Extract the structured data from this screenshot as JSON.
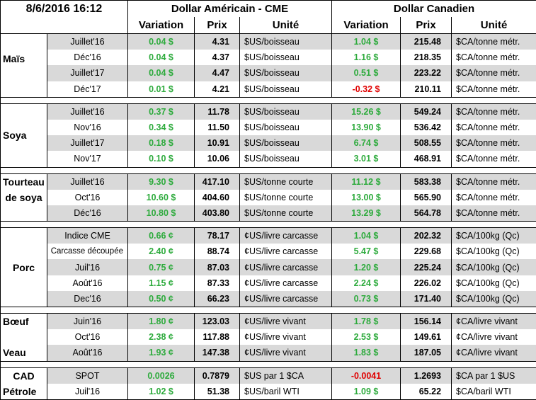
{
  "header": {
    "timestamp": "8/6/2016 16:12",
    "usd_title": "Dollar Américain - CME",
    "cad_title": "Dollar Canadien",
    "col_variation": "Variation",
    "col_prix": "Prix",
    "col_unite": "Unité"
  },
  "colors": {
    "positive": "#2eab3d",
    "negative": "#e00000",
    "row_gray": "#d9d9d9"
  },
  "groups": [
    {
      "name": "Maïs",
      "rows": [
        {
          "month": "Juillet'16",
          "usd_var": "0.04 $",
          "usd_price": "4.31",
          "usd_unit": "$US/boisseau",
          "cad_var": "1.04 $",
          "cad_price": "215.48",
          "cad_unit": "$CA/tonne métr.",
          "usd_sign": "pos",
          "cad_sign": "pos"
        },
        {
          "month": "Déc'16",
          "usd_var": "0.04 $",
          "usd_price": "4.37",
          "usd_unit": "$US/boisseau",
          "cad_var": "1.16 $",
          "cad_price": "218.35",
          "cad_unit": "$CA/tonne métr.",
          "usd_sign": "pos",
          "cad_sign": "pos"
        },
        {
          "month": "Juillet'17",
          "usd_var": "0.04 $",
          "usd_price": "4.47",
          "usd_unit": "$US/boisseau",
          "cad_var": "0.51 $",
          "cad_price": "223.22",
          "cad_unit": "$CA/tonne métr.",
          "usd_sign": "pos",
          "cad_sign": "pos"
        },
        {
          "month": "Déc'17",
          "usd_var": "0.01 $",
          "usd_price": "4.21",
          "usd_unit": "$US/boisseau",
          "cad_var": "-0.32 $",
          "cad_price": "210.11",
          "cad_unit": "$CA/tonne métr.",
          "usd_sign": "pos",
          "cad_sign": "neg"
        }
      ]
    },
    {
      "name": "Soya",
      "rows": [
        {
          "month": "Juillet'16",
          "usd_var": "0.37 $",
          "usd_price": "11.78",
          "usd_unit": "$US/boisseau",
          "cad_var": "15.26 $",
          "cad_price": "549.24",
          "cad_unit": "$CA/tonne métr.",
          "usd_sign": "pos",
          "cad_sign": "pos"
        },
        {
          "month": "Nov'16",
          "usd_var": "0.34 $",
          "usd_price": "11.50",
          "usd_unit": "$US/boisseau",
          "cad_var": "13.90 $",
          "cad_price": "536.42",
          "cad_unit": "$CA/tonne métr.",
          "usd_sign": "pos",
          "cad_sign": "pos"
        },
        {
          "month": "Juillet'17",
          "usd_var": "0.18 $",
          "usd_price": "10.91",
          "usd_unit": "$US/boisseau",
          "cad_var": "6.74 $",
          "cad_price": "508.55",
          "cad_unit": "$CA/tonne métr.",
          "usd_sign": "pos",
          "cad_sign": "pos"
        },
        {
          "month": "Nov'17",
          "usd_var": "0.10 $",
          "usd_price": "10.06",
          "usd_unit": "$US/boisseau",
          "cad_var": "3.01 $",
          "cad_price": "468.91",
          "cad_unit": "$CA/tonne métr.",
          "usd_sign": "pos",
          "cad_sign": "pos"
        }
      ]
    },
    {
      "name_line1": "Tourteau",
      "name_line2": "de soya",
      "rows": [
        {
          "month": "Juillet'16",
          "usd_var": "9.30 $",
          "usd_price": "417.10",
          "usd_unit": "$US/tonne courte",
          "cad_var": "11.12 $",
          "cad_price": "583.38",
          "cad_unit": "$CA/tonne métr.",
          "usd_sign": "pos",
          "cad_sign": "pos"
        },
        {
          "month": "Oct'16",
          "usd_var": "10.60 $",
          "usd_price": "404.60",
          "usd_unit": "$US/tonne courte",
          "cad_var": "13.00 $",
          "cad_price": "565.90",
          "cad_unit": "$CA/tonne métr.",
          "usd_sign": "pos",
          "cad_sign": "pos"
        },
        {
          "month": "Déc'16",
          "usd_var": "10.80 $",
          "usd_price": "403.80",
          "usd_unit": "$US/tonne courte",
          "cad_var": "13.29 $",
          "cad_price": "564.78",
          "cad_unit": "$CA/tonne métr.",
          "usd_sign": "pos",
          "cad_sign": "pos"
        }
      ]
    },
    {
      "name": "Porc",
      "rows": [
        {
          "month": "Indice CME",
          "usd_var": "0.66 ¢",
          "usd_price": "78.17",
          "usd_unit": "¢US/livre carcasse",
          "cad_var": "1.04 $",
          "cad_price": "202.32",
          "cad_unit": "$CA/100kg (Qc)",
          "usd_sign": "pos",
          "cad_sign": "pos"
        },
        {
          "month": "Carcasse découpée",
          "usd_var": "2.40 ¢",
          "usd_price": "88.74",
          "usd_unit": "¢US/livre carcasse",
          "cad_var": "5.47 $",
          "cad_price": "229.68",
          "cad_unit": "$CA/100kg (Qc)",
          "usd_sign": "pos",
          "cad_sign": "pos"
        },
        {
          "month": "Juil'16",
          "usd_var": "0.75 ¢",
          "usd_price": "87.03",
          "usd_unit": "¢US/livre carcasse",
          "cad_var": "1.20 $",
          "cad_price": "225.24",
          "cad_unit": "$CA/100kg (Qc)",
          "usd_sign": "pos",
          "cad_sign": "pos"
        },
        {
          "month": "Août'16",
          "usd_var": "1.15 ¢",
          "usd_price": "87.33",
          "usd_unit": "¢US/livre carcasse",
          "cad_var": "2.24 $",
          "cad_price": "226.02",
          "cad_unit": "$CA/100kg (Qc)",
          "usd_sign": "pos",
          "cad_sign": "pos"
        },
        {
          "month": "Dec'16",
          "usd_var": "0.50 ¢",
          "usd_price": "66.23",
          "usd_unit": "¢US/livre carcasse",
          "cad_var": "0.73 $",
          "cad_price": "171.40",
          "cad_unit": "$CA/100kg (Qc)",
          "usd_sign": "pos",
          "cad_sign": "pos"
        }
      ]
    },
    {
      "name_boeuf": "Bœuf",
      "name_veau": "Veau",
      "rows": [
        {
          "month": "Juin'16",
          "usd_var": "1.80 ¢",
          "usd_price": "123.03",
          "usd_unit": "¢US/livre vivant",
          "cad_var": "1.78 $",
          "cad_price": "156.14",
          "cad_unit": "¢CA/livre vivant",
          "usd_sign": "pos",
          "cad_sign": "pos"
        },
        {
          "month": "Oct'16",
          "usd_var": "2.38 ¢",
          "usd_price": "117.88",
          "usd_unit": "¢US/livre vivant",
          "cad_var": "2.53 $",
          "cad_price": "149.61",
          "cad_unit": "¢CA/livre vivant",
          "usd_sign": "pos",
          "cad_sign": "pos"
        },
        {
          "month": "Août'16",
          "usd_var": "1.93 ¢",
          "usd_price": "147.38",
          "usd_unit": "¢US/livre vivant",
          "cad_var": "1.83 $",
          "cad_price": "187.05",
          "cad_unit": "¢CA/livre vivant",
          "usd_sign": "pos",
          "cad_sign": "pos"
        }
      ]
    },
    {
      "rows": [
        {
          "label": "CAD",
          "month": "SPOT",
          "usd_var": "0.0026",
          "usd_price": "0.7879",
          "usd_unit": "$US par 1 $CA",
          "cad_var": "-0.0041",
          "cad_price": "1.2693",
          "cad_unit": "$CA par 1 $US",
          "usd_sign": "pos",
          "cad_sign": "neg"
        },
        {
          "label": "Pétrole",
          "month": "Juil'16",
          "usd_var": "1.02 $",
          "usd_price": "51.38",
          "usd_unit": "$US/baril WTI",
          "cad_var": "1.09 $",
          "cad_price": "65.22",
          "cad_unit": "$CA/baril WTI",
          "usd_sign": "pos",
          "cad_sign": "pos"
        }
      ]
    }
  ]
}
